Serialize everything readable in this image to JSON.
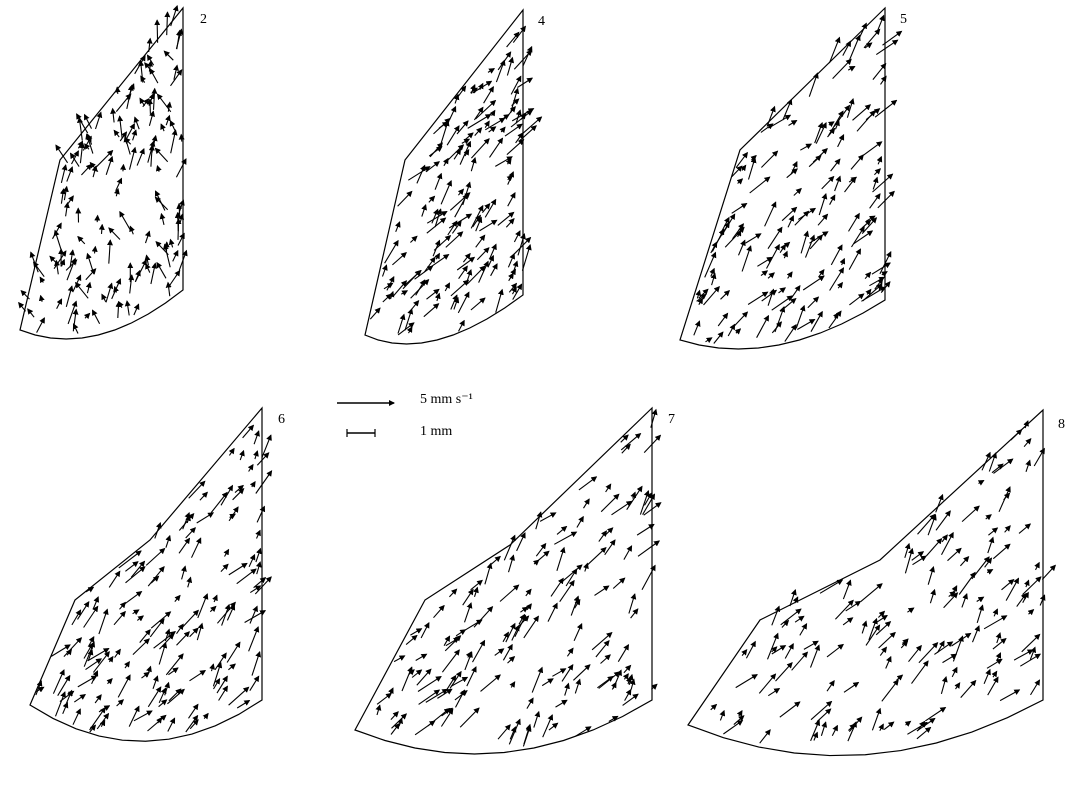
{
  "panels": [
    {
      "label": "2"
    },
    {
      "label": "4"
    },
    {
      "label": "5"
    },
    {
      "label": "6"
    },
    {
      "label": "7"
    },
    {
      "label": "8"
    }
  ],
  "legend": {
    "velocity_label": "5 mm s⁻¹",
    "scale_label": "1 mm"
  }
}
